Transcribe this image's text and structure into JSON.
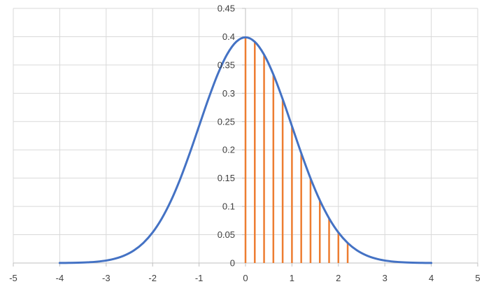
{
  "chart_data": {
    "type": "line",
    "title": "",
    "xlabel": "",
    "ylabel": "",
    "xlim": [
      -5,
      5
    ],
    "ylim": [
      0,
      0.45
    ],
    "x_ticks": [
      -5,
      -4,
      -3,
      -2,
      -1,
      0,
      1,
      2,
      3,
      4,
      5
    ],
    "x_tick_labels": [
      "-5",
      "-4",
      "-3",
      "-2",
      "-1",
      "0",
      "1",
      "2",
      "3",
      "4",
      "5"
    ],
    "y_ticks": [
      0,
      0.05,
      0.1,
      0.15,
      0.2,
      0.25,
      0.3,
      0.35,
      0.4,
      0.45
    ],
    "y_tick_labels": [
      "0",
      "0.05",
      "0.1",
      "0.15",
      "0.2",
      "0.25",
      "0.3",
      "0.35",
      "0.4",
      "0.45"
    ],
    "grid": true,
    "legend": "none",
    "series": [
      {
        "type": "line",
        "color": "#4472C4",
        "x": [
          -4,
          -3.8,
          -3.6,
          -3.4,
          -3.2,
          -3,
          -2.8,
          -2.6,
          -2.4,
          -2.2,
          -2,
          -1.8,
          -1.6,
          -1.4,
          -1.2,
          -1,
          -0.8,
          -0.6,
          -0.4,
          -0.2,
          0,
          0.2,
          0.4,
          0.6,
          0.8,
          1,
          1.2,
          1.4,
          1.6,
          1.8,
          2,
          2.2,
          2.4,
          2.6,
          2.8,
          3,
          3.2,
          3.4,
          3.6,
          3.8,
          4
        ],
        "values": [
          0.0001,
          0.0003,
          0.0006,
          0.0012,
          0.0024,
          0.0044,
          0.0079,
          0.0136,
          0.0224,
          0.0355,
          0.054,
          0.079,
          0.1109,
          0.1497,
          0.1942,
          0.242,
          0.2897,
          0.3332,
          0.3683,
          0.391,
          0.3989,
          0.391,
          0.3683,
          0.3332,
          0.2897,
          0.242,
          0.1942,
          0.1497,
          0.1109,
          0.079,
          0.054,
          0.0355,
          0.0224,
          0.0136,
          0.0079,
          0.0044,
          0.0024,
          0.0012,
          0.0006,
          0.0003,
          0.0001
        ]
      },
      {
        "type": "vertical-lines",
        "color": "#ED7D31",
        "x": [
          0,
          0.2,
          0.4,
          0.6,
          0.8,
          1,
          1.2,
          1.4,
          1.6,
          1.8,
          2,
          2.2
        ],
        "values": [
          0.3989,
          0.391,
          0.3683,
          0.3332,
          0.2897,
          0.242,
          0.1942,
          0.1497,
          0.1109,
          0.079,
          0.054,
          0.0355
        ]
      }
    ]
  }
}
